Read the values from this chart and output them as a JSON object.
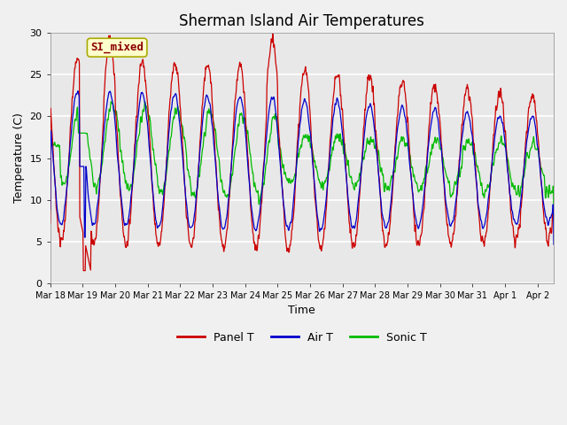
{
  "title": "Sherman Island Air Temperatures",
  "xlabel": "Time",
  "ylabel": "Temperature (C)",
  "ylim": [
    0,
    30
  ],
  "annotation_text": "SI_mixed",
  "annotation_color": "#8B0000",
  "annotation_bg": "#FFFFCC",
  "annotation_edge": "#AAAA00",
  "panel_color": "#CC0000",
  "air_color": "#0000CC",
  "sonic_color": "#00BB00",
  "bg_color": "#E8E8E8",
  "grid_color": "#FFFFFF",
  "title_fontsize": 12,
  "tick_fontsize": 8,
  "axis_label_fontsize": 9,
  "legend_fontsize": 9,
  "x_tick_labels": [
    "Mar 18",
    "Mar 19",
    "Mar 20",
    "Mar 21",
    "Mar 22",
    "Mar 23",
    "Mar 24",
    "Mar 25",
    "Mar 26",
    "Mar 27",
    "Mar 28",
    "Mar 29",
    "Mar 30",
    "Mar 31",
    "Apr 1",
    "Apr 2"
  ]
}
